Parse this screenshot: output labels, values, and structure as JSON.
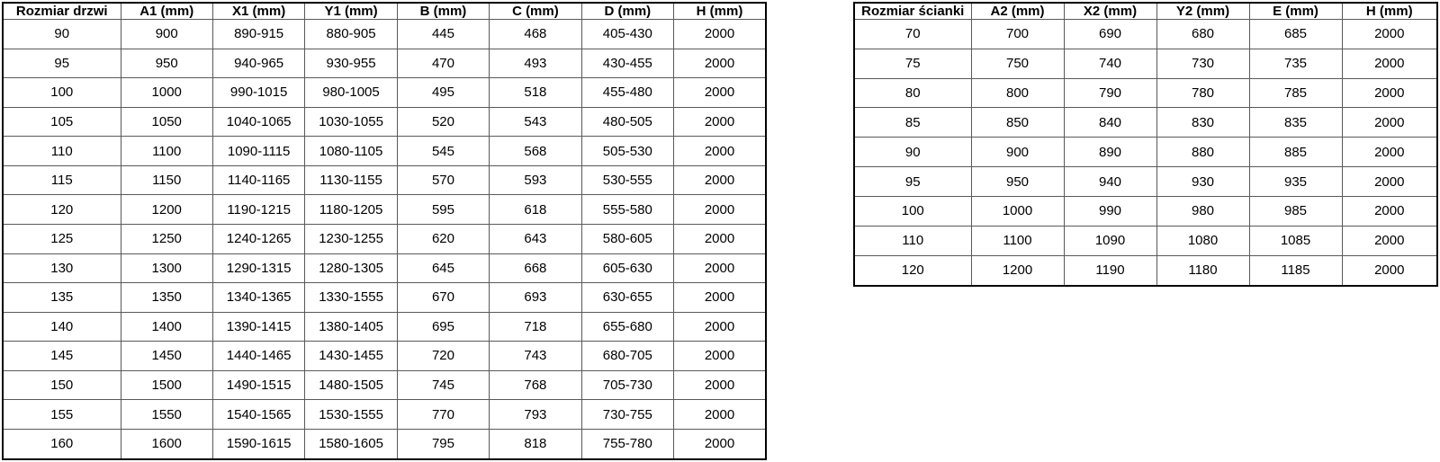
{
  "doors_table": {
    "name": "Rozmiar drzwi",
    "headers": [
      "Rozmiar drzwi",
      "A1 (mm)",
      "X1 (mm)",
      "Y1 (mm)",
      "B (mm)",
      "C (mm)",
      "D (mm)",
      "H (mm)"
    ],
    "rows": [
      [
        "90",
        "900",
        "890-915",
        "880-905",
        "445",
        "468",
        "405-430",
        "2000"
      ],
      [
        "95",
        "950",
        "940-965",
        "930-955",
        "470",
        "493",
        "430-455",
        "2000"
      ],
      [
        "100",
        "1000",
        "990-1015",
        "980-1005",
        "495",
        "518",
        "455-480",
        "2000"
      ],
      [
        "105",
        "1050",
        "1040-1065",
        "1030-1055",
        "520",
        "543",
        "480-505",
        "2000"
      ],
      [
        "110",
        "1100",
        "1090-1115",
        "1080-1105",
        "545",
        "568",
        "505-530",
        "2000"
      ],
      [
        "115",
        "1150",
        "1140-1165",
        "1130-1155",
        "570",
        "593",
        "530-555",
        "2000"
      ],
      [
        "120",
        "1200",
        "1190-1215",
        "1180-1205",
        "595",
        "618",
        "555-580",
        "2000"
      ],
      [
        "125",
        "1250",
        "1240-1265",
        "1230-1255",
        "620",
        "643",
        "580-605",
        "2000"
      ],
      [
        "130",
        "1300",
        "1290-1315",
        "1280-1305",
        "645",
        "668",
        "605-630",
        "2000"
      ],
      [
        "135",
        "1350",
        "1340-1365",
        "1330-1555",
        "670",
        "693",
        "630-655",
        "2000"
      ],
      [
        "140",
        "1400",
        "1390-1415",
        "1380-1405",
        "695",
        "718",
        "655-680",
        "2000"
      ],
      [
        "145",
        "1450",
        "1440-1465",
        "1430-1455",
        "720",
        "743",
        "680-705",
        "2000"
      ],
      [
        "150",
        "1500",
        "1490-1515",
        "1480-1505",
        "745",
        "768",
        "705-730",
        "2000"
      ],
      [
        "155",
        "1550",
        "1540-1565",
        "1530-1555",
        "770",
        "793",
        "730-755",
        "2000"
      ],
      [
        "160",
        "1600",
        "1590-1615",
        "1580-1605",
        "795",
        "818",
        "755-780",
        "2000"
      ]
    ]
  },
  "walls_table": {
    "name": "Rozmiar ścianki",
    "headers": [
      "Rozmiar ścianki",
      "A2 (mm)",
      "X2 (mm)",
      "Y2 (mm)",
      "E (mm)",
      "H (mm)"
    ],
    "rows": [
      [
        "70",
        "700",
        "690",
        "680",
        "685",
        "2000"
      ],
      [
        "75",
        "750",
        "740",
        "730",
        "735",
        "2000"
      ],
      [
        "80",
        "800",
        "790",
        "780",
        "785",
        "2000"
      ],
      [
        "85",
        "850",
        "840",
        "830",
        "835",
        "2000"
      ],
      [
        "90",
        "900",
        "890",
        "880",
        "885",
        "2000"
      ],
      [
        "95",
        "950",
        "940",
        "930",
        "935",
        "2000"
      ],
      [
        "100",
        "1000",
        "990",
        "980",
        "985",
        "2000"
      ],
      [
        "110",
        "1100",
        "1090",
        "1080",
        "1085",
        "2000"
      ],
      [
        "120",
        "1200",
        "1190",
        "1180",
        "1185",
        "2000"
      ]
    ]
  },
  "colors": {
    "outer_border": "#000000",
    "inner_border": "#595959",
    "text": "#000000",
    "background": "#ffffff"
  }
}
